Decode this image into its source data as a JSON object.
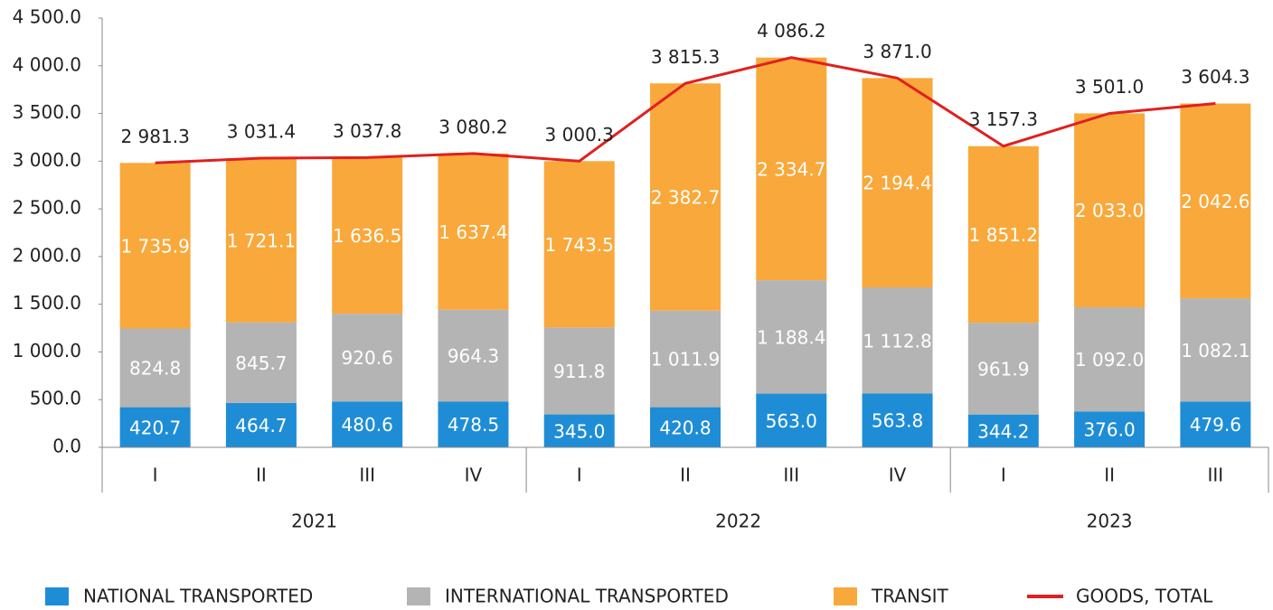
{
  "chart_data": {
    "type": "bar",
    "groups": [
      {
        "name": "2021",
        "categories": [
          "I",
          "II",
          "III",
          "IV"
        ]
      },
      {
        "name": "2022",
        "categories": [
          "I",
          "II",
          "III",
          "IV"
        ]
      },
      {
        "name": "2023",
        "categories": [
          "I",
          "II",
          "III"
        ]
      }
    ],
    "ylim": [
      0,
      4500
    ],
    "yticks": [
      {
        "value": 0,
        "label": "0.0"
      },
      {
        "value": 500,
        "label": "500.0"
      },
      {
        "value": 1000,
        "label": "1 000.0"
      },
      {
        "value": 1500,
        "label": "1 500.0"
      },
      {
        "value": 2000,
        "label": "2 000.0"
      },
      {
        "value": 2500,
        "label": "2 500.0"
      },
      {
        "value": 3000,
        "label": "3 000.0"
      },
      {
        "value": 3500,
        "label": "3 500.0"
      },
      {
        "value": 4000,
        "label": "4 000.0"
      },
      {
        "value": 4500,
        "label": "4 500.0"
      }
    ],
    "series": [
      {
        "name": "NATIONAL TRANSPORTED",
        "color": "#1f8dd6",
        "values": [
          420.7,
          464.7,
          480.6,
          478.5,
          345.0,
          420.8,
          563.0,
          563.8,
          344.2,
          376.0,
          479.6
        ],
        "value_labels": [
          "420.7",
          "464.7",
          "480.6",
          "478.5",
          "345.0",
          "420.8",
          "563.0",
          "563.8",
          "344.2",
          "376.0",
          "479.6"
        ]
      },
      {
        "name": "INTERNATIONAL TRANSPORTED",
        "color": "#b4b4b4",
        "values": [
          824.8,
          845.7,
          920.6,
          964.3,
          911.8,
          1011.9,
          1188.4,
          1112.8,
          961.9,
          1092.0,
          1082.1
        ],
        "value_labels": [
          "824.8",
          "845.7",
          "920.6",
          "964.3",
          "911.8",
          "1 011.9",
          "1 188.4",
          "1 112.8",
          "961.9",
          "1 092.0",
          "1 082.1"
        ]
      },
      {
        "name": "TRANSIT",
        "color": "#f9a83b",
        "values": [
          1735.9,
          1721.1,
          1636.5,
          1637.4,
          1743.5,
          2382.7,
          2334.7,
          2194.4,
          1851.2,
          2033.0,
          2042.6
        ],
        "value_labels": [
          "1 735.9",
          "1 721.1",
          "1 636.5",
          "1 637.4",
          "1 743.5",
          "2 382.7",
          "2 334.7",
          "2 194.4",
          "1 851.2",
          "2 033.0",
          "2 042.6"
        ]
      },
      {
        "name": "GOODS, TOTAL",
        "color": "#e02020",
        "type": "line",
        "values": [
          2981.3,
          3031.4,
          3037.8,
          3080.2,
          3000.3,
          3815.3,
          4086.2,
          3871.0,
          3157.3,
          3501.0,
          3604.3
        ],
        "value_labels": [
          "2 981.3",
          "3 031.4",
          "3 037.8",
          "3 080.2",
          "3 000.3",
          "3 815.3",
          "4 086.2",
          "3 871.0",
          "3 157.3",
          "3 501.0",
          "3 604.3"
        ]
      }
    ]
  }
}
